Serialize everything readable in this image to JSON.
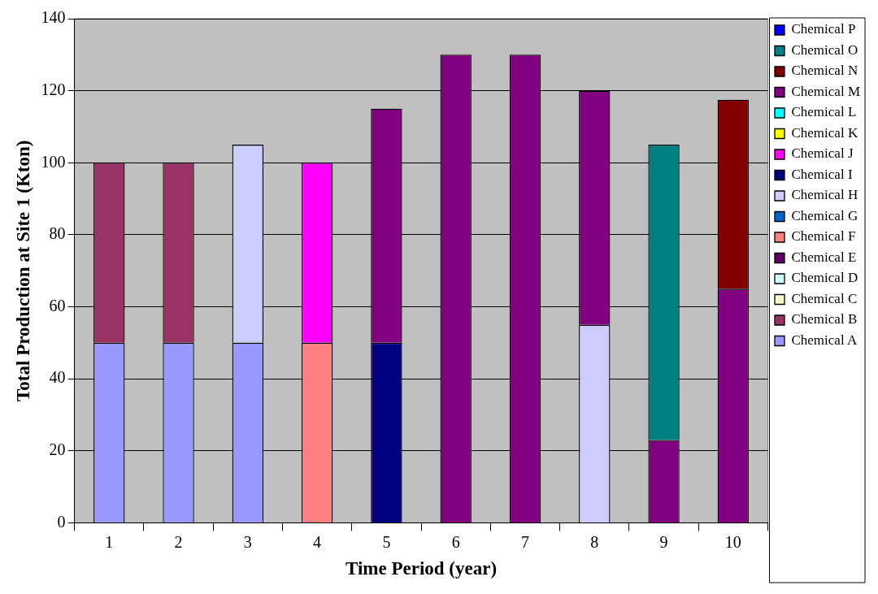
{
  "chart_data": {
    "type": "bar",
    "stacked": true,
    "xlabel": "Time Period (year)",
    "ylabel": "Total Production at Site 1 (Kton)",
    "categories": [
      "1",
      "2",
      "3",
      "4",
      "5",
      "6",
      "7",
      "8",
      "9",
      "10"
    ],
    "ylim": [
      0,
      140
    ],
    "yticks": [
      0,
      20,
      40,
      60,
      80,
      100,
      120,
      140
    ],
    "grid": "y",
    "legend": "right",
    "series": [
      {
        "name": "Chemical A",
        "color": "#9999ff",
        "values": [
          50,
          50,
          50,
          null,
          null,
          null,
          null,
          null,
          null,
          null
        ]
      },
      {
        "name": "Chemical B",
        "color": "#993366",
        "values": [
          50,
          50,
          null,
          null,
          null,
          null,
          null,
          null,
          null,
          null
        ]
      },
      {
        "name": "Chemical C",
        "color": "#ffffcc",
        "values": [
          null,
          null,
          null,
          null,
          null,
          null,
          null,
          null,
          null,
          null
        ]
      },
      {
        "name": "Chemical D",
        "color": "#ccffff",
        "values": [
          null,
          null,
          null,
          null,
          null,
          null,
          null,
          null,
          null,
          null
        ]
      },
      {
        "name": "Chemical E",
        "color": "#660066",
        "values": [
          null,
          null,
          null,
          null,
          null,
          null,
          null,
          null,
          null,
          null
        ]
      },
      {
        "name": "Chemical F",
        "color": "#ff8080",
        "values": [
          null,
          null,
          null,
          50,
          null,
          null,
          null,
          null,
          null,
          null
        ]
      },
      {
        "name": "Chemical G",
        "color": "#0066cc",
        "values": [
          null,
          null,
          null,
          null,
          null,
          null,
          null,
          null,
          null,
          null
        ]
      },
      {
        "name": "Chemical H",
        "color": "#ccccff",
        "values": [
          null,
          null,
          55,
          null,
          null,
          null,
          null,
          55,
          null,
          null
        ]
      },
      {
        "name": "Chemical I",
        "color": "#000080",
        "values": [
          null,
          null,
          null,
          null,
          50,
          null,
          null,
          null,
          null,
          null
        ]
      },
      {
        "name": "Chemical J",
        "color": "#ff00ff",
        "values": [
          null,
          null,
          null,
          50,
          null,
          null,
          null,
          null,
          null,
          null
        ]
      },
      {
        "name": "Chemical K",
        "color": "#ffff00",
        "values": [
          null,
          null,
          null,
          null,
          null,
          null,
          null,
          null,
          null,
          null
        ]
      },
      {
        "name": "Chemical L",
        "color": "#00ffff",
        "values": [
          null,
          null,
          null,
          null,
          null,
          null,
          null,
          null,
          null,
          null
        ]
      },
      {
        "name": "Chemical M",
        "color": "#800080",
        "values": [
          null,
          null,
          null,
          null,
          65,
          130,
          130,
          65,
          23,
          65
        ]
      },
      {
        "name": "Chemical N",
        "color": "#800000",
        "values": [
          null,
          null,
          null,
          null,
          null,
          null,
          null,
          null,
          null,
          52.5
        ]
      },
      {
        "name": "Chemical O",
        "color": "#008080",
        "values": [
          null,
          null,
          null,
          null,
          null,
          null,
          null,
          null,
          82,
          null
        ]
      },
      {
        "name": "Chemical P",
        "color": "#0000ff",
        "values": [
          null,
          null,
          null,
          null,
          null,
          null,
          null,
          null,
          null,
          null
        ]
      }
    ]
  }
}
